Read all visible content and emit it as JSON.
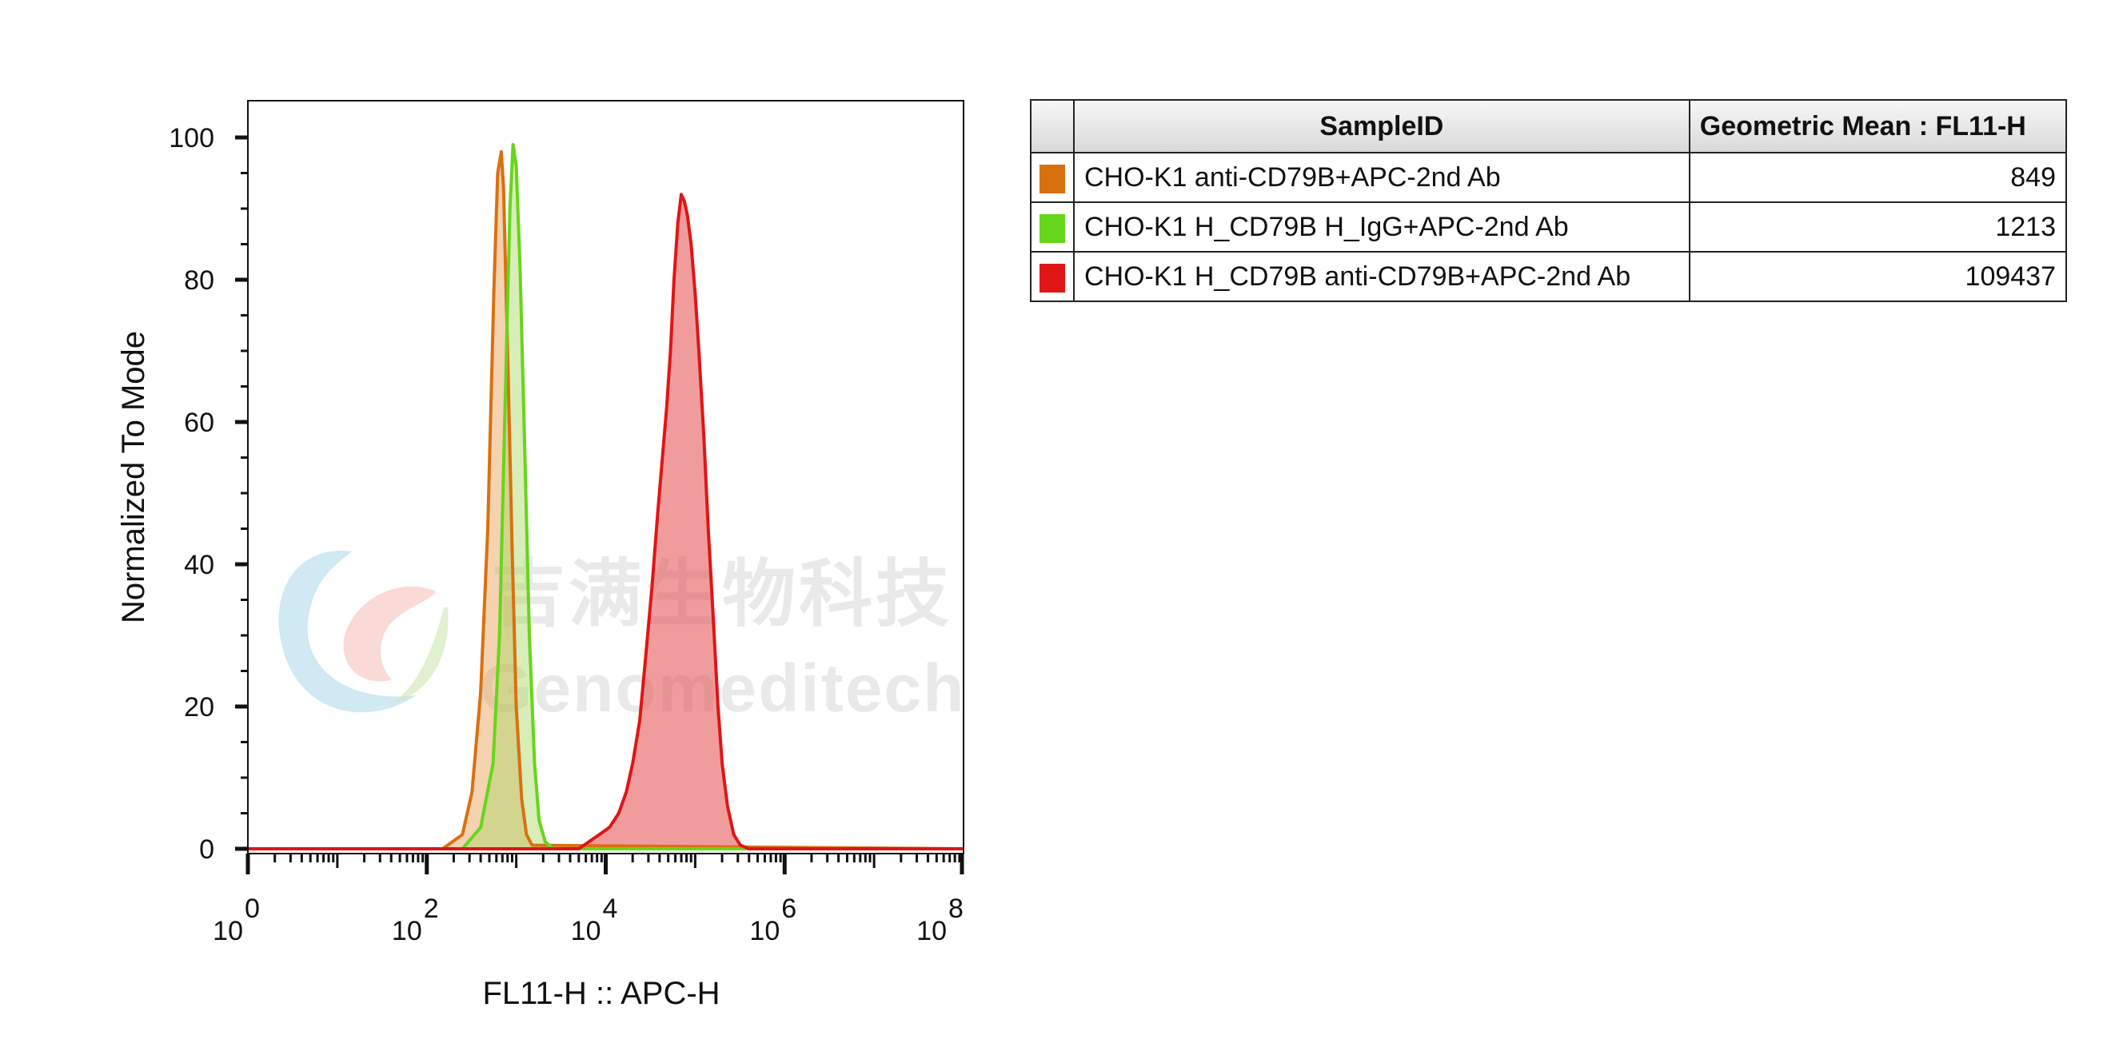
{
  "chart_data": {
    "type": "area",
    "title": "",
    "xlabel": "FL11-H :: APC-H",
    "ylabel": "Normalized To Mode",
    "x_scale": "log",
    "xlim": [
      1,
      100000000
    ],
    "ylim": [
      0,
      105
    ],
    "x_tick_labels": [
      {
        "base": "10",
        "exp": "0"
      },
      {
        "base": "10",
        "exp": "2"
      },
      {
        "base": "10",
        "exp": "4"
      },
      {
        "base": "10",
        "exp": "6"
      },
      {
        "base": "10",
        "exp": "8"
      }
    ],
    "y_ticks": [
      0,
      20,
      40,
      60,
      80,
      100
    ],
    "grid": false,
    "legend_placement": "right (table)",
    "series": [
      {
        "sample_id": "CHO-K1 anti-CD79B+APC-2nd Ab",
        "geometric_mean": "849",
        "color": "#d97010",
        "fill": "rgba(232,155,80,0.45)",
        "points": [
          [
            1,
            0
          ],
          [
            150,
            0
          ],
          [
            250,
            2
          ],
          [
            320,
            8
          ],
          [
            400,
            22
          ],
          [
            480,
            45
          ],
          [
            560,
            78
          ],
          [
            620,
            95
          ],
          [
            680,
            98
          ],
          [
            720,
            93
          ],
          [
            800,
            70
          ],
          [
            900,
            42
          ],
          [
            1000,
            20
          ],
          [
            1150,
            7
          ],
          [
            1300,
            2
          ],
          [
            1500,
            0.5
          ],
          [
            100000000,
            0
          ]
        ]
      },
      {
        "sample_id": "CHO-K1 H_CD79B H_IgG+APC-2nd Ab",
        "geometric_mean": "1213",
        "color": "#66d61a",
        "fill": "rgba(170,215,100,0.45)",
        "points": [
          [
            1,
            0
          ],
          [
            250,
            0
          ],
          [
            400,
            3
          ],
          [
            550,
            12
          ],
          [
            650,
            30
          ],
          [
            750,
            62
          ],
          [
            850,
            90
          ],
          [
            920,
            99
          ],
          [
            1000,
            96
          ],
          [
            1100,
            82
          ],
          [
            1250,
            55
          ],
          [
            1400,
            30
          ],
          [
            1600,
            12
          ],
          [
            1800,
            4
          ],
          [
            2100,
            1
          ],
          [
            2600,
            0
          ],
          [
            100000000,
            0
          ]
        ]
      },
      {
        "sample_id": "CHO-K1 H_CD79B anti-CD79B+APC-2nd Ab",
        "geometric_mean": "109437",
        "color": "#e01515",
        "fill": "rgba(230,90,90,0.6)",
        "points": [
          [
            1,
            0
          ],
          [
            5000,
            0
          ],
          [
            6500,
            1
          ],
          [
            8500,
            2
          ],
          [
            11000,
            3
          ],
          [
            14000,
            5
          ],
          [
            17000,
            8
          ],
          [
            20000,
            12
          ],
          [
            24000,
            18
          ],
          [
            28000,
            27
          ],
          [
            33000,
            37
          ],
          [
            38000,
            47
          ],
          [
            43000,
            55
          ],
          [
            48000,
            62
          ],
          [
            53000,
            70
          ],
          [
            58000,
            80
          ],
          [
            64000,
            88
          ],
          [
            70000,
            92
          ],
          [
            76000,
            91
          ],
          [
            82000,
            89
          ],
          [
            90000,
            85
          ],
          [
            100000,
            78
          ],
          [
            110000,
            70
          ],
          [
            125000,
            58
          ],
          [
            140000,
            45
          ],
          [
            160000,
            32
          ],
          [
            180000,
            20
          ],
          [
            200000,
            12
          ],
          [
            230000,
            6
          ],
          [
            270000,
            2
          ],
          [
            320000,
            0.5
          ],
          [
            400000,
            0
          ],
          [
            100000000,
            0
          ]
        ]
      }
    ]
  },
  "legend_table": {
    "header_sample": "SampleID",
    "header_mean": "Geometric Mean : FL11-H"
  },
  "watermark": {
    "cn_text": "吉满生物科技",
    "en_text": "Genomeditech"
  }
}
